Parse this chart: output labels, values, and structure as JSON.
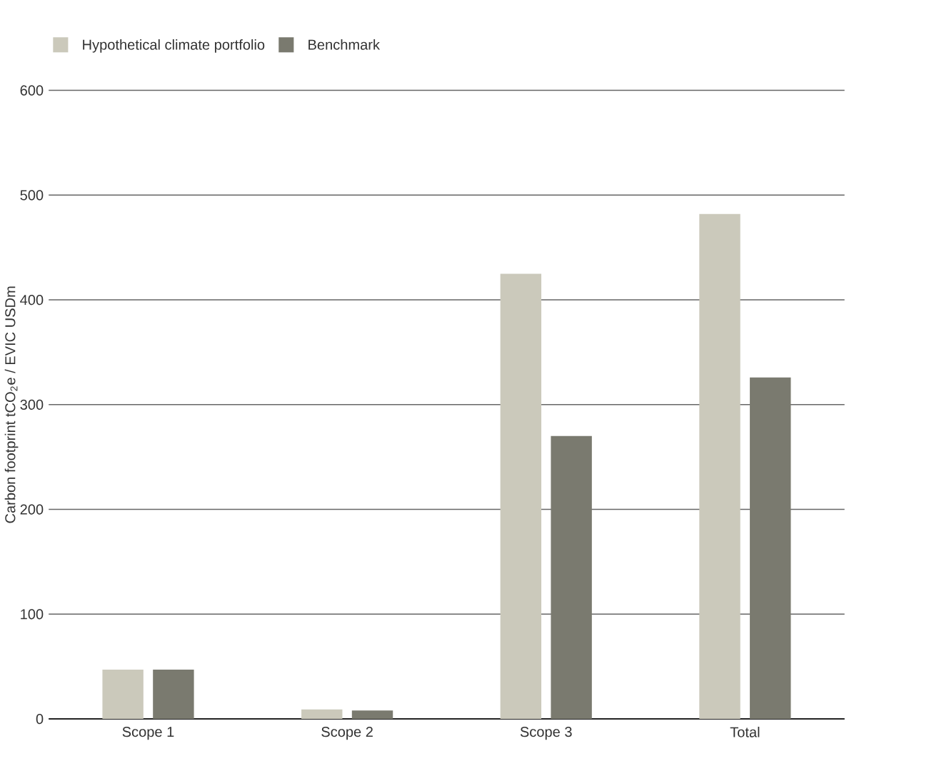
{
  "chart_data": {
    "type": "bar",
    "categories": [
      "Scope 1",
      "Scope 2",
      "Scope 3",
      "Total"
    ],
    "series": [
      {
        "name": "Hypothetical climate portfolio",
        "color": "#cbc9bb",
        "values": [
          47,
          9,
          425,
          482
        ]
      },
      {
        "name": "Benchmark",
        "color": "#7a7a6f",
        "values": [
          47,
          8,
          270,
          326
        ]
      }
    ],
    "ylabel": "Carbon footprint tCO$_{2}$e / EVIC USDm",
    "ylim": [
      0,
      600
    ],
    "yticks": [
      0,
      100,
      200,
      300,
      400,
      500,
      600
    ],
    "grid": "y",
    "legend": "top left"
  }
}
